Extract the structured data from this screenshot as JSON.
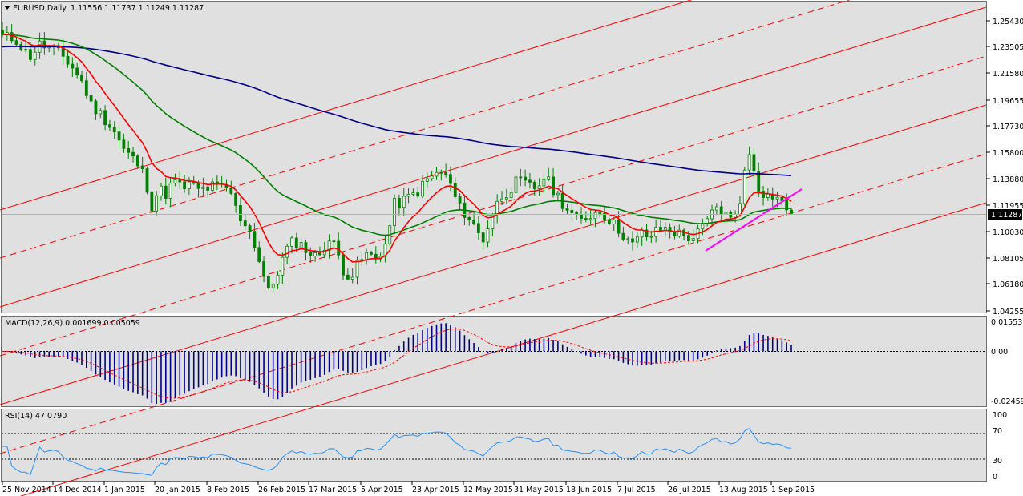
{
  "header": {
    "symbol": "EURUSD,Daily",
    "ohlc": "1.11556 1.11737 1.11249 1.11287"
  },
  "price_panel": {
    "current_price": "1.11287",
    "y_ticks": [
      "1.25430",
      "1.23505",
      "1.21580",
      "1.19655",
      "1.17730",
      "1.15800",
      "1.13880",
      "1.11955",
      "1.10030",
      "1.08105",
      "1.06180",
      "1.04255"
    ]
  },
  "macd_panel": {
    "label": "MACD(12,26,9) 0.001699 0.005059",
    "y_ticks": [
      "0.015539",
      "0.00",
      "-0.024594"
    ]
  },
  "rsi_panel": {
    "label": "RSI(14) 47.0790",
    "y_ticks": [
      "100",
      "70",
      "30",
      "0"
    ]
  },
  "x_axis": {
    "labels": [
      "25 Nov 2014",
      "14 Dec 2014",
      "1 Jan 2015",
      "20 Jan 2015",
      "8 Feb 2015",
      "26 Feb 2015",
      "17 Mar 2015",
      "5 Apr 2015",
      "23 Apr 2015",
      "12 May 2015",
      "31 May 2015",
      "18 Jun 2015",
      "7 Jul 2015",
      "26 Jul 2015",
      "13 Aug 2015",
      "1 Sep 2015"
    ]
  },
  "colors": {
    "panel_bg": "#e0e0e0",
    "candle": "#008000",
    "ema_fast": "#ff0000",
    "ema_mid": "#007f00",
    "ema_slow": "#00008b",
    "channel": "#ff0000",
    "trendline": "#ff00ff",
    "macd_hist": "#00008b",
    "macd_signal": "#ff0000",
    "rsi": "#1e90ff"
  },
  "chart_data": [
    {
      "type": "candlestick",
      "title": "EURUSD,Daily",
      "x_labels": [
        "25 Nov 2014",
        "14 Dec 2014",
        "1 Jan 2015",
        "20 Jan 2015",
        "8 Feb 2015",
        "26 Feb 2015",
        "17 Mar 2015",
        "5 Apr 2015",
        "23 Apr 2015",
        "12 May 2015",
        "31 May 2015",
        "18 Jun 2015",
        "7 Jul 2015",
        "26 Jul 2015",
        "13 Aug 2015",
        "1 Sep 2015"
      ],
      "ylim": [
        1.0385,
        1.2605
      ],
      "last": {
        "open": 1.11556,
        "high": 1.11737,
        "low": 1.11249,
        "close": 1.11287
      },
      "close_path": [
        [
          0,
          1.248
        ],
        [
          10,
          1.246
        ],
        [
          20,
          1.232
        ],
        [
          28,
          1.242
        ],
        [
          38,
          1.238
        ],
        [
          46,
          1.232
        ],
        [
          54,
          1.222
        ],
        [
          60,
          1.212
        ],
        [
          66,
          1.196
        ],
        [
          74,
          1.188
        ],
        [
          84,
          1.175
        ],
        [
          90,
          1.162
        ],
        [
          96,
          1.156
        ],
        [
          100,
          1.152
        ],
        [
          106,
          1.141
        ],
        [
          112,
          1.116
        ],
        [
          116,
          1.132
        ],
        [
          122,
          1.128
        ],
        [
          128,
          1.138
        ],
        [
          134,
          1.132
        ],
        [
          140,
          1.135
        ],
        [
          146,
          1.131
        ],
        [
          152,
          1.132
        ],
        [
          158,
          1.134
        ],
        [
          164,
          1.132
        ],
        [
          170,
          1.13
        ],
        [
          176,
          1.11
        ],
        [
          180,
          1.108
        ],
        [
          186,
          1.096
        ],
        [
          190,
          1.082
        ],
        [
          194,
          1.068
        ],
        [
          198,
          1.052
        ],
        [
          202,
          1.06
        ],
        [
          208,
          1.076
        ],
        [
          214,
          1.09
        ],
        [
          220,
          1.091
        ],
        [
          226,
          1.086
        ],
        [
          232,
          1.079
        ],
        [
          238,
          1.084
        ],
        [
          242,
          1.093
        ],
        [
          246,
          1.091
        ],
        [
          250,
          1.082
        ],
        [
          254,
          1.07
        ],
        [
          260,
          1.064
        ],
        [
          266,
          1.076
        ],
        [
          272,
          1.082
        ],
        [
          278,
          1.078
        ],
        [
          286,
          1.09
        ],
        [
          292,
          1.12
        ],
        [
          298,
          1.122
        ],
        [
          304,
          1.126
        ],
        [
          310,
          1.13
        ],
        [
          316,
          1.138
        ],
        [
          322,
          1.142
        ],
        [
          328,
          1.145
        ],
        [
          334,
          1.135
        ],
        [
          340,
          1.118
        ],
        [
          346,
          1.112
        ],
        [
          352,
          1.103
        ],
        [
          358,
          1.092
        ],
        [
          366,
          1.115
        ],
        [
          372,
          1.126
        ],
        [
          378,
          1.131
        ],
        [
          384,
          1.138
        ],
        [
          392,
          1.134
        ],
        [
          398,
          1.132
        ],
        [
          404,
          1.141
        ],
        [
          410,
          1.132
        ],
        [
          416,
          1.123
        ],
        [
          422,
          1.115
        ],
        [
          430,
          1.106
        ],
        [
          438,
          1.112
        ],
        [
          446,
          1.115
        ],
        [
          454,
          1.106
        ],
        [
          462,
          1.098
        ],
        [
          470,
          1.088
        ],
        [
          476,
          1.098
        ],
        [
          482,
          1.095
        ],
        [
          490,
          1.101
        ],
        [
          496,
          1.101
        ],
        [
          502,
          1.098
        ],
        [
          508,
          1.096
        ],
        [
          514,
          1.094
        ],
        [
          520,
          1.099
        ],
        [
          526,
          1.108
        ],
        [
          532,
          1.118
        ],
        [
          538,
          1.113
        ],
        [
          544,
          1.107
        ],
        [
          550,
          1.125
        ],
        [
          556,
          1.16
        ],
        [
          560,
          1.148
        ],
        [
          564,
          1.132
        ],
        [
          570,
          1.126
        ],
        [
          576,
          1.127
        ],
        [
          582,
          1.119
        ],
        [
          588,
          1.113
        ]
      ]
    },
    {
      "type": "line",
      "title": "MACD(12,26,9) 0.001699 0.005059",
      "series": [
        {
          "name": "MACD",
          "values": [
            0.001699
          ]
        },
        {
          "name": "Signal",
          "values": [
            0.005059
          ]
        }
      ],
      "ylim": [
        -0.02655,
        0.0164
      ]
    },
    {
      "type": "line",
      "title": "RSI(14) 47.0790",
      "series": [
        {
          "name": "RSI(14)",
          "values": [
            47.079
          ]
        }
      ],
      "ylim": [
        0,
        100
      ],
      "levels": [
        70,
        30
      ]
    }
  ]
}
